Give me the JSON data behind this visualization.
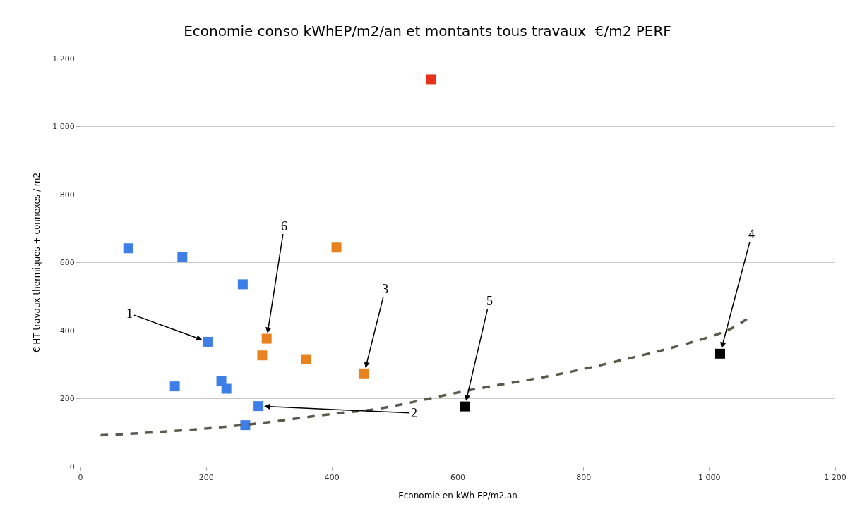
{
  "chart_data": {
    "type": "scatter",
    "title": "Economie conso kWhEP/m2/an et montants tous travaux  €/m2 PERF",
    "xlabel": "Economie en kWh EP/m2.an",
    "ylabel": "€ HT travaux thermiques + connexes / m2",
    "series": [
      {
        "color": "#3d7fe6",
        "x": [
          76,
          162,
          258,
          202,
          150,
          224,
          232,
          283,
          262
        ],
        "values": [
          642,
          616,
          536,
          367,
          236,
          251,
          229,
          178,
          122
        ]
      },
      {
        "color": "#e8821e",
        "x": [
          407,
          296,
          289,
          359,
          451
        ],
        "values": [
          644,
          376,
          327,
          316,
          274
        ]
      },
      {
        "color": "#e8301a",
        "x": [
          557
        ],
        "values": [
          1139
        ]
      },
      {
        "color": "#000000",
        "x": [
          611,
          1017
        ],
        "values": [
          177,
          332
        ]
      },
      {
        "type": "line",
        "color": "#5b5a4a",
        "line_style": "dashed",
        "marker": "none",
        "x": [
          32,
          150,
          262,
          400,
          476,
          611,
          797,
          1024,
          1061
        ],
        "values": [
          92,
          105,
          123,
          155,
          171,
          222,
          286,
          397,
          436
        ]
      }
    ],
    "marker": "square",
    "xlim": [
      0,
      1200
    ],
    "xticks": [
      0,
      200,
      400,
      600,
      800,
      {
        "value": 1000,
        "label": "1 000"
      },
      {
        "value": 1200,
        "label": "1 200"
      }
    ],
    "ylim": [
      0,
      1200
    ],
    "yticks": [
      0,
      200,
      400,
      600,
      800,
      {
        "value": 1000,
        "label": "1 000"
      },
      {
        "value": 1200,
        "label": "1 200"
      }
    ],
    "grid": "y",
    "annotations": [
      {
        "text": "1",
        "x": 202,
        "y": 367
      },
      {
        "text": "2",
        "x": 283,
        "y": 178
      },
      {
        "text": "3",
        "x": 451,
        "y": 274
      },
      {
        "text": "4",
        "x": 1017,
        "y": 332
      },
      {
        "text": "5",
        "x": 611,
        "y": 177
      },
      {
        "text": "6",
        "x": 296,
        "y": 376
      }
    ]
  }
}
